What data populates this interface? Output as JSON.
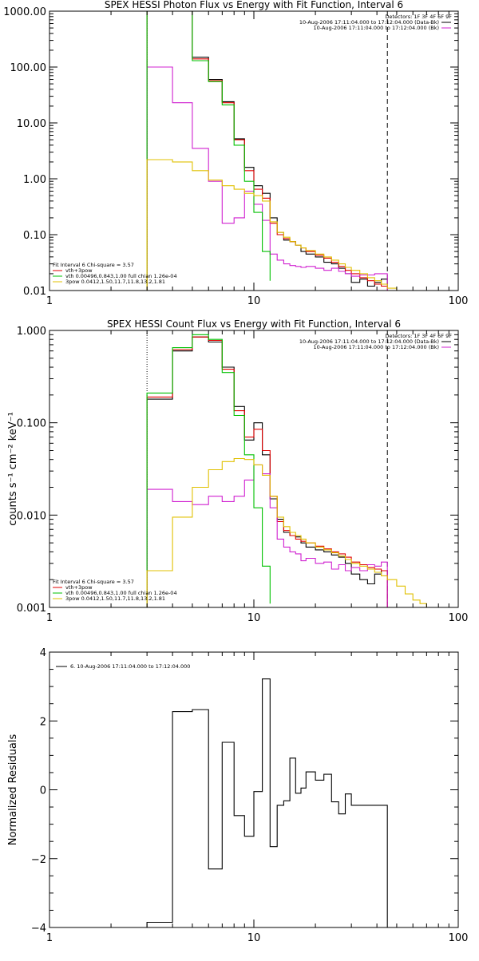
{
  "charts": [
    {
      "id": "photon",
      "title": "SPEX HESSI Photon Flux vs Energy with Fit Function, Interval 6",
      "xlabel": "",
      "ylabel": "",
      "xscale": "log",
      "yscale": "log",
      "xlim": [
        1,
        100
      ],
      "ylim": [
        0.01,
        1000
      ],
      "xticks": [
        {
          "v": 1,
          "label": "1"
        },
        {
          "v": 10,
          "label": "10"
        },
        {
          "v": 100,
          "label": "100"
        }
      ],
      "yticks": [
        {
          "v": 1000,
          "label": "1000.00"
        },
        {
          "v": 100,
          "label": "100.00"
        },
        {
          "v": 10,
          "label": "10.00"
        },
        {
          "v": 1,
          "label": "1.00"
        },
        {
          "v": 0.1,
          "label": "0.10"
        },
        {
          "v": 0.01,
          "label": "0.01"
        }
      ],
      "vlines": [
        {
          "x": 3,
          "style": "dotted"
        },
        {
          "x": 45,
          "style": "dashed"
        }
      ],
      "legend_top": [
        "Detectors: 1F 3F 4F 6F 9F",
        "10-Aug-2006 17:11:04.000 to 17:12:04.000 (Data-Bk)",
        "10-Aug-2006 17:11:04.000 to 17:12:04.000 (Bk)"
      ],
      "legend_top_colors": [
        "",
        "#000000",
        "#d020d0"
      ],
      "legend_bottom": [
        "Fit Interval 6   Chi-square = 3.57",
        "vth+3pow",
        "vth 0.00496,0.843,1.00  full chian 1.26e-04",
        "3pow 0.0412,1.50,11.7,11.8,13.2,1.81"
      ],
      "legend_bottom_colors": [
        "",
        "#e00000",
        "#00c000",
        "#e0c000"
      ],
      "series": [
        {
          "name": "data",
          "color": "#000000",
          "edges": [
            3,
            4,
            5,
            6,
            7,
            8,
            9,
            10,
            11,
            12,
            13,
            14,
            15,
            16,
            17,
            18,
            20,
            22,
            24,
            26,
            28,
            30,
            33,
            36,
            39,
            42,
            45
          ],
          "values": [
            1000,
            1000,
            150,
            60,
            24,
            5.2,
            1.6,
            0.75,
            0.55,
            0.2,
            0.11,
            0.08,
            0.075,
            0.065,
            0.05,
            0.045,
            0.04,
            0.032,
            0.03,
            0.025,
            0.02,
            0.014,
            0.016,
            0.012,
            0.014,
            0.016
          ]
        },
        {
          "name": "vth+3pow",
          "color": "#e00000",
          "edges": [
            3,
            4,
            5,
            6,
            7,
            8,
            9,
            10,
            11,
            12,
            13,
            14,
            15,
            16,
            17,
            18,
            20,
            22,
            24,
            26,
            28,
            30,
            33,
            36,
            39,
            42,
            45
          ],
          "values": [
            1000,
            1000,
            140,
            57,
            23,
            5,
            1.4,
            0.65,
            0.45,
            0.16,
            0.1,
            0.085,
            0.075,
            0.065,
            0.058,
            0.05,
            0.043,
            0.038,
            0.032,
            0.027,
            0.023,
            0.02,
            0.017,
            0.015,
            0.013,
            0.012
          ]
        },
        {
          "name": "Bk",
          "color": "#d020d0",
          "edges": [
            3,
            4,
            5,
            6,
            7,
            8,
            9,
            10,
            11,
            12,
            13,
            14,
            15,
            16,
            17,
            18,
            20,
            22,
            24,
            26,
            28,
            30,
            33,
            36,
            39,
            42,
            45
          ],
          "values": [
            100,
            23,
            3.5,
            0.9,
            0.16,
            0.2,
            0.6,
            0.35,
            0.18,
            0.045,
            0.035,
            0.03,
            0.028,
            0.027,
            0.026,
            0.027,
            0.025,
            0.023,
            0.025,
            0.022,
            0.02,
            0.018,
            0.019,
            0.019,
            0.02,
            0.02
          ]
        },
        {
          "name": "vth",
          "color": "#00c000",
          "edges": [
            3,
            4,
            5,
            6,
            7,
            8,
            9,
            10,
            11,
            12
          ],
          "values": [
            1000,
            1000,
            130,
            55,
            21,
            4,
            0.9,
            0.25,
            0.05,
            0.015
          ]
        },
        {
          "name": "3pow",
          "color": "#e0c000",
          "edges": [
            3,
            4,
            5,
            6,
            7,
            8,
            9,
            10,
            11,
            12,
            13,
            14,
            15,
            16,
            17,
            18,
            20,
            22,
            24,
            26,
            28,
            30,
            33,
            36,
            39,
            42,
            45,
            50
          ],
          "values": [
            2.2,
            2,
            1.4,
            0.95,
            0.75,
            0.65,
            0.55,
            0.5,
            0.4,
            0.17,
            0.11,
            0.09,
            0.075,
            0.065,
            0.058,
            0.052,
            0.045,
            0.04,
            0.035,
            0.03,
            0.026,
            0.023,
            0.02,
            0.017,
            0.015,
            0.013,
            0.011
          ]
        }
      ]
    },
    {
      "id": "count",
      "title": "SPEX HESSI Count Flux vs Energy with Fit Function, Interval 6",
      "xlabel": "",
      "ylabel": "counts s⁻¹ cm⁻² keV⁻¹",
      "xscale": "log",
      "yscale": "log",
      "xlim": [
        1,
        100
      ],
      "ylim": [
        0.001,
        1
      ],
      "xticks": [
        {
          "v": 1,
          "label": "1"
        },
        {
          "v": 10,
          "label": "10"
        },
        {
          "v": 100,
          "label": "100"
        }
      ],
      "yticks": [
        {
          "v": 1,
          "label": "1.000"
        },
        {
          "v": 0.1,
          "label": "0.100"
        },
        {
          "v": 0.01,
          "label": "0.010"
        },
        {
          "v": 0.001,
          "label": "0.001"
        }
      ],
      "vlines": [
        {
          "x": 3,
          "style": "dotted"
        },
        {
          "x": 45,
          "style": "dashed"
        }
      ],
      "legend_top": [
        "Detectors: 1F 3F 4F 6F 9F",
        "10-Aug-2006 17:11:04.000 to 17:12:04.000 (Data-Bk)",
        "10-Aug-2006 17:11:04.000 to 17:12:04.000 (Bk)"
      ],
      "legend_top_colors": [
        "",
        "#000000",
        "#d020d0"
      ],
      "legend_bottom": [
        "Fit Interval 6   Chi-square = 3.57",
        "vth+3pow",
        "vth 0.00496,0.843,1.00  full chian 1.26e-04",
        "3pow 0.0412,1.50,11.7,11.8,13.2,1.81"
      ],
      "legend_bottom_colors": [
        "",
        "#e00000",
        "#00c000",
        "#e0c000"
      ],
      "series": [
        {
          "name": "data",
          "color": "#000000",
          "edges": [
            3,
            4,
            5,
            6,
            7,
            8,
            9,
            10,
            11,
            12,
            13,
            14,
            15,
            16,
            17,
            18,
            20,
            22,
            24,
            26,
            28,
            30,
            33,
            36,
            39,
            42,
            45
          ],
          "values": [
            0.18,
            0.6,
            0.85,
            0.75,
            0.4,
            0.15,
            0.065,
            0.1,
            0.045,
            0.015,
            0.009,
            0.0065,
            0.006,
            0.0058,
            0.005,
            0.0045,
            0.0042,
            0.004,
            0.0037,
            0.0035,
            0.003,
            0.0023,
            0.002,
            0.0018,
            0.0023,
            0.0025
          ]
        },
        {
          "name": "vth+3pow",
          "color": "#e00000",
          "edges": [
            3,
            4,
            5,
            6,
            7,
            8,
            9,
            10,
            11,
            12,
            13,
            14,
            15,
            16,
            17,
            18,
            20,
            22,
            24,
            26,
            28,
            30,
            33,
            36,
            39,
            42,
            45
          ],
          "values": [
            0.19,
            0.62,
            0.85,
            0.78,
            0.38,
            0.135,
            0.07,
            0.085,
            0.05,
            0.016,
            0.0085,
            0.0068,
            0.006,
            0.0055,
            0.0052,
            0.005,
            0.0046,
            0.0043,
            0.004,
            0.0038,
            0.0035,
            0.0031,
            0.0029,
            0.0027,
            0.0026,
            0.0025
          ]
        },
        {
          "name": "Bk",
          "color": "#d020d0",
          "edges": [
            3,
            4,
            5,
            6,
            7,
            8,
            9,
            10,
            11,
            12,
            13,
            14,
            15,
            16,
            17,
            18,
            20,
            22,
            24,
            26,
            28,
            30,
            33,
            36,
            39,
            42,
            45
          ],
          "values": [
            0.019,
            0.014,
            0.013,
            0.016,
            0.014,
            0.016,
            0.024,
            0.035,
            0.028,
            0.012,
            0.0055,
            0.0045,
            0.004,
            0.0038,
            0.0032,
            0.0034,
            0.003,
            0.0031,
            0.0026,
            0.0029,
            0.0025,
            0.0027,
            0.0025,
            0.0029,
            0.0028,
            0.0031
          ]
        },
        {
          "name": "vth",
          "color": "#00c000",
          "edges": [
            3,
            4,
            5,
            6,
            7,
            8,
            9,
            10,
            11,
            12
          ],
          "values": [
            0.21,
            0.65,
            0.9,
            0.8,
            0.35,
            0.12,
            0.045,
            0.012,
            0.0028,
            0.0011
          ]
        },
        {
          "name": "3pow",
          "color": "#e0c000",
          "edges": [
            3,
            4,
            5,
            6,
            7,
            8,
            9,
            10,
            11,
            12,
            13,
            14,
            15,
            16,
            17,
            18,
            20,
            22,
            24,
            26,
            28,
            30,
            33,
            36,
            39,
            42,
            45,
            50,
            55,
            60,
            65,
            70,
            75
          ],
          "values": [
            0.0025,
            0.0095,
            0.02,
            0.031,
            0.038,
            0.041,
            0.04,
            0.035,
            0.027,
            0.016,
            0.0095,
            0.0075,
            0.0065,
            0.006,
            0.0055,
            0.005,
            0.0045,
            0.0042,
            0.0039,
            0.0036,
            0.0033,
            0.003,
            0.0028,
            0.0026,
            0.0024,
            0.0022,
            0.002,
            0.0017,
            0.0014,
            0.0012,
            0.0011,
            0.001
          ]
        }
      ]
    },
    {
      "id": "residuals",
      "title": "",
      "xlabel": "",
      "ylabel": "Normalized Residuals",
      "xscale": "log",
      "yscale": "linear",
      "xlim": [
        1,
        100
      ],
      "ylim": [
        -4,
        4
      ],
      "xticks": [
        {
          "v": 1,
          "label": "1"
        },
        {
          "v": 10,
          "label": "10"
        },
        {
          "v": 100,
          "label": "100"
        }
      ],
      "yticks": [
        {
          "v": 4,
          "label": "4"
        },
        {
          "v": 2,
          "label": "2"
        },
        {
          "v": 0,
          "label": "0"
        },
        {
          "v": -2,
          "label": "−2"
        },
        {
          "v": -4,
          "label": "−4"
        }
      ],
      "vlines": [],
      "legend_top": [
        "6. 10-Aug-2006 17:11:04.000 to 17:12:04.000"
      ],
      "legend_top_colors": [
        "#000000"
      ],
      "legend_bottom": [],
      "legend_bottom_colors": [],
      "series": [
        {
          "name": "residuals",
          "color": "#000000",
          "edges": [
            3,
            4,
            5,
            6,
            7,
            8,
            9,
            10,
            11,
            12,
            13,
            14,
            15,
            16,
            17,
            18,
            20,
            22,
            24,
            26,
            28,
            30,
            33,
            36,
            39,
            42,
            45
          ],
          "values": [
            -3.85,
            2.27,
            2.33,
            -2.3,
            1.38,
            -0.75,
            -1.35,
            -0.05,
            3.22,
            -1.65,
            -0.45,
            -0.32,
            0.92,
            -0.1,
            0.05,
            0.52,
            0.28,
            0.45,
            -0.35,
            -0.7,
            -0.12,
            -0.45,
            -0.45,
            -0.45,
            -0.45,
            -0.45
          ]
        }
      ]
    }
  ]
}
